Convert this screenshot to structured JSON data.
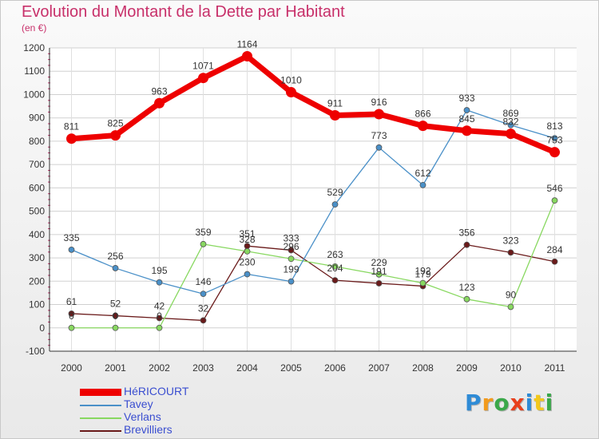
{
  "chart_data": {
    "type": "line",
    "title": "Evolution du Montant de la Dette par Habitant",
    "subtitle": "(en €)",
    "x": [
      "2000",
      "2001",
      "2002",
      "2003",
      "2004",
      "2005",
      "2006",
      "2007",
      "2008",
      "2009",
      "2010",
      "2011"
    ],
    "ylim": [
      -100,
      1200
    ],
    "yticks": [
      -100,
      0,
      100,
      200,
      300,
      400,
      500,
      600,
      700,
      800,
      900,
      1000,
      1100,
      1200
    ],
    "grid": true,
    "legend_position": "bottom-left",
    "series": [
      {
        "name": "HéRICOURT",
        "color": "#ee0000",
        "values": [
          811,
          825,
          963,
          1071,
          1164,
          1010,
          911,
          916,
          866,
          845,
          832,
          753
        ]
      },
      {
        "name": "Tavey",
        "color": "#4a90c8",
        "values": [
          335,
          256,
          195,
          146,
          230,
          199,
          529,
          773,
          612,
          933,
          869,
          813
        ]
      },
      {
        "name": "Verlans",
        "color": "#88d860",
        "values": [
          0,
          0,
          0,
          359,
          328,
          296,
          263,
          229,
          192,
          123,
          90,
          546
        ]
      },
      {
        "name": "Brevilliers",
        "color": "#6a1a1a",
        "values": [
          61,
          52,
          42,
          32,
          351,
          333,
          204,
          191,
          179,
          356,
          323,
          284
        ]
      }
    ]
  },
  "branding": {
    "logo_text": "Proxiti",
    "logo_colors": [
      "#2e8bd6",
      "#f29a1c",
      "#3aa84a",
      "#e8401c",
      "#2e8bd6",
      "#f2c81c",
      "#3aa84a"
    ]
  }
}
